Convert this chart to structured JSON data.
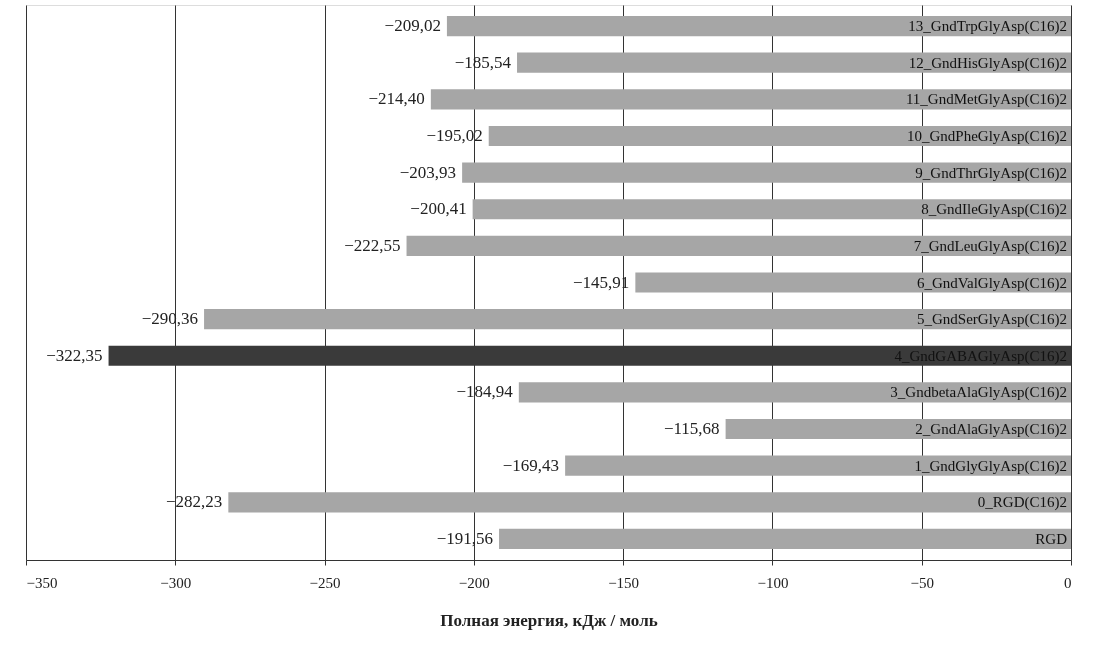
{
  "chart_data": {
    "type": "bar",
    "orientation": "horizontal",
    "xlabel": "Полная энергия, кДж / моль",
    "categories": [
      "13_GndTrpGlyAsp(C16)2",
      "12_GndHisGlyAsp(C16)2",
      "11_GndMetGlyAsp(C16)2",
      "10_GndPheGlyAsp(C16)2",
      "9_GndThrGlyAsp(C16)2",
      "8_GndIleGlyAsp(C16)2",
      "7_GndLeuGlyAsp(C16)2",
      "6_GndValGlyAsp(C16)2",
      "5_GndSerGlyAsp(C16)2",
      "4_GndGABAGlyAsp(C16)2",
      "3_GndbetaAlaGlyAsp(C16)2",
      "2_GndAlaGlyAsp(C16)2",
      "1_GndGlyGlyAsp(C16)2",
      "0_RGD(C16)2",
      "RGD"
    ],
    "values": [
      -209.02,
      -185.54,
      -214.4,
      -195.02,
      -203.93,
      -200.41,
      -222.55,
      -145.91,
      -290.36,
      -322.35,
      -184.94,
      -115.68,
      -169.43,
      -282.23,
      -191.56
    ],
    "value_labels": [
      "−209,02",
      "−185,54",
      "−214,40",
      "−195,02",
      "−203,93",
      "−200,41",
      "−222,55",
      "−145,91",
      "−290,36",
      "−322,35",
      "−184,94",
      "−115,68",
      "−169,43",
      "−282,23",
      "−191,56"
    ],
    "colors": [
      "#a6a6a6",
      "#a6a6a6",
      "#a6a6a6",
      "#a6a6a6",
      "#a6a6a6",
      "#a6a6a6",
      "#a6a6a6",
      "#a6a6a6",
      "#a6a6a6",
      "#3a3a3a",
      "#a6a6a6",
      "#a6a6a6",
      "#a6a6a6",
      "#a6a6a6",
      "#a6a6a6"
    ],
    "xlim": [
      -350,
      0
    ],
    "xticks": [
      -350,
      -300,
      -250,
      -200,
      -150,
      -100,
      -50,
      0
    ],
    "grid": "x",
    "legend": false
  }
}
